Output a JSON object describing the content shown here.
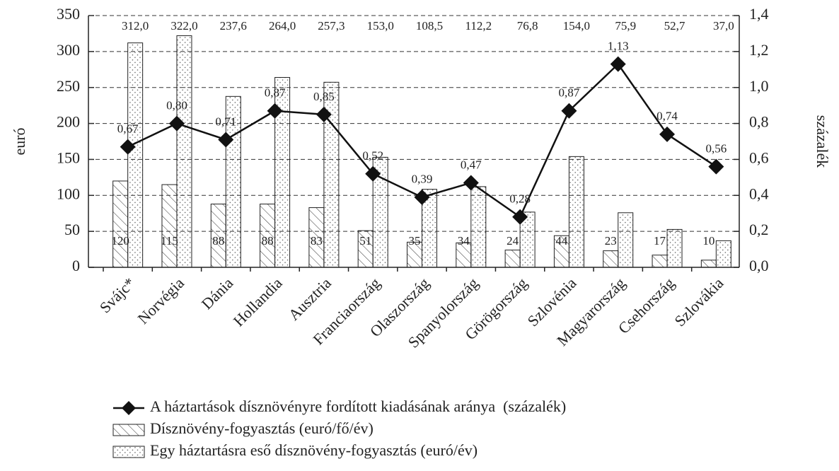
{
  "chart_data": {
    "type": "bar_line",
    "ylabel": "euró",
    "y2label": "százalék",
    "categories": [
      "Svájc*",
      "Norvégia",
      "Dánia",
      "Hollandia",
      "Ausztria",
      "Franciaország",
      "Olaszország",
      "Spanyolország",
      "Görögország",
      "Szlovénia",
      "Magyarország",
      "Csehország",
      "Szlovákia"
    ],
    "series": [
      {
        "name": "A háztartások dísznövényre fordított kiadásának aránya  (százalék)",
        "type": "line",
        "axis": "y2",
        "color": "#111111",
        "values": [
          0.67,
          0.8,
          0.71,
          0.87,
          0.85,
          0.52,
          0.39,
          0.47,
          0.28,
          0.87,
          1.13,
          0.74,
          0.56
        ],
        "value_labels": [
          "0,67",
          "0,80",
          "0,71",
          "0,87",
          "0,85",
          "0,52",
          "0,39",
          "0,47",
          "0,28",
          "0,87",
          "1,13",
          "0,74",
          "0,56"
        ]
      },
      {
        "name": "Dísznövény-fogyasztás (euró/fő/év)",
        "type": "bar",
        "pattern": "hatch",
        "color": "#222222",
        "values": [
          120,
          115,
          88,
          88,
          83,
          51,
          35,
          34,
          24,
          44,
          23,
          17,
          10
        ]
      },
      {
        "name": "Egy háztartásra eső dísznövény-fogyasztás (euró/év)",
        "type": "bar",
        "pattern": "dots",
        "color": "#222222",
        "values": [
          312.0,
          322.0,
          237.6,
          264.0,
          257.3,
          153.0,
          108.5,
          112.2,
          76.8,
          154.0,
          75.9,
          52.7,
          37.0
        ],
        "value_labels": [
          "312,0",
          "322,0",
          "237,6",
          "264,0",
          "257,3",
          "153,0",
          "108,5",
          "112,2",
          "76,8",
          "154,0",
          "75,9",
          "52,7",
          "37,0"
        ]
      }
    ],
    "ylim": [
      0,
      350
    ],
    "yticks": [
      0,
      50,
      100,
      150,
      200,
      250,
      300,
      350
    ],
    "y2lim": [
      0,
      1.4
    ],
    "y2ticks": [
      {
        "value": 0,
        "label": "0,0"
      },
      {
        "value": 0.2,
        "label": "0,2"
      },
      {
        "value": 0.4,
        "label": "0,4"
      },
      {
        "value": 0.6,
        "label": "0,6"
      },
      {
        "value": 0.8,
        "label": "0,8"
      },
      {
        "value": 1.0,
        "label": "1,0"
      },
      {
        "value": 1.2,
        "label": "1,2"
      },
      {
        "value": 1.4,
        "label": "1,4"
      }
    ],
    "grid": true
  }
}
